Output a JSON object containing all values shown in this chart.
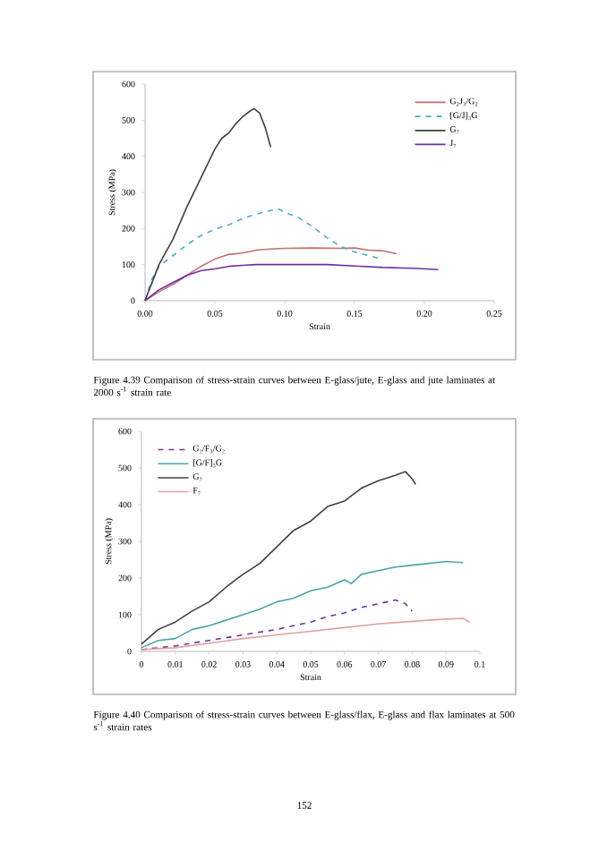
{
  "chart_data": [
    {
      "type": "line",
      "xlabel": "Strain",
      "ylabel": "Stress (MPa)",
      "xlim": [
        0,
        0.25
      ],
      "ylim": [
        0,
        600
      ],
      "xticks": [
        {
          "value": 0,
          "label": "0.00"
        },
        {
          "value": 0.05,
          "label": "0.05"
        },
        {
          "value": 0.1,
          "label": "0.10"
        },
        {
          "value": 0.15,
          "label": "0.15"
        },
        {
          "value": 0.2,
          "label": "0.20"
        },
        {
          "value": 0.25,
          "label": "0.25"
        }
      ],
      "yticks": [
        0,
        100,
        200,
        300,
        400,
        500,
        600
      ],
      "grid": false,
      "legend": "top right",
      "marker": "none",
      "series": [
        {
          "name": "G₂J₃/G₂",
          "color": "#c07070",
          "line_style": "solid",
          "x": [
            0,
            0.01,
            0.02,
            0.03,
            0.04,
            0.05,
            0.06,
            0.07,
            0.08,
            0.09,
            0.1,
            0.12,
            0.14,
            0.15,
            0.16,
            0.17,
            0.18
          ],
          "values": [
            0,
            25,
            45,
            70,
            95,
            115,
            128,
            132,
            140,
            143,
            145,
            146,
            145,
            146,
            140,
            138,
            130
          ]
        },
        {
          "name": "[G/J]₃G",
          "color": "#4bacc6",
          "line_style": "dashed",
          "x": [
            0,
            0.005,
            0.01,
            0.02,
            0.03,
            0.04,
            0.05,
            0.06,
            0.07,
            0.08,
            0.09,
            0.095,
            0.1,
            0.11,
            0.12,
            0.13,
            0.14,
            0.15,
            0.16,
            0.167
          ],
          "values": [
            0,
            60,
            95,
            125,
            155,
            180,
            198,
            210,
            228,
            240,
            250,
            255,
            245,
            230,
            205,
            175,
            150,
            135,
            125,
            118
          ]
        },
        {
          "name": "G₇",
          "color": "#404040",
          "line_style": "solid",
          "x": [
            0,
            0.01,
            0.02,
            0.03,
            0.04,
            0.05,
            0.055,
            0.06,
            0.065,
            0.07,
            0.075,
            0.078,
            0.082,
            0.086,
            0.09
          ],
          "values": [
            0,
            100,
            170,
            260,
            340,
            420,
            450,
            465,
            490,
            510,
            525,
            532,
            520,
            480,
            425
          ]
        },
        {
          "name": "J₇",
          "color": "#7030a0",
          "line_style": "solid",
          "x": [
            0,
            0.01,
            0.02,
            0.03,
            0.04,
            0.05,
            0.06,
            0.07,
            0.08,
            0.1,
            0.13,
            0.15,
            0.17,
            0.19,
            0.21
          ],
          "values": [
            0,
            30,
            50,
            70,
            83,
            88,
            95,
            98,
            100,
            100,
            100,
            96,
            92,
            90,
            86
          ]
        }
      ],
      "annotations": [
        "Figure 4.39     Comparison of stress-strain curves between E-glass/jute, E-glass and jute laminates at 2000 s$^{-1}$ strain rate"
      ]
    },
    {
      "type": "line",
      "xlabel": "Strain",
      "ylabel": "Stress (MPa)",
      "xlim": [
        0,
        0.1
      ],
      "ylim": [
        0,
        600
      ],
      "xticks": [
        0,
        0.01,
        0.02,
        0.03,
        0.04,
        0.05,
        0.06,
        0.07,
        0.08,
        0.09,
        0.1
      ],
      "yticks": [
        0,
        100,
        200,
        300,
        400,
        500,
        600
      ],
      "grid": false,
      "legend": "top left",
      "marker": "none",
      "series": [
        {
          "name": "G₂/F₃/G₂",
          "color": "#7030a0",
          "line_style": "dashed",
          "x": [
            0,
            0.01,
            0.02,
            0.03,
            0.04,
            0.05,
            0.055,
            0.06,
            0.065,
            0.07,
            0.075,
            0.078,
            0.08
          ],
          "values": [
            5,
            15,
            30,
            45,
            60,
            80,
            95,
            105,
            120,
            130,
            140,
            130,
            110
          ]
        },
        {
          "name": "[G/F]₃G",
          "color": "#4aa3a8",
          "line_style": "solid",
          "x": [
            0,
            0.005,
            0.01,
            0.015,
            0.02,
            0.025,
            0.03,
            0.035,
            0.04,
            0.045,
            0.05,
            0.055,
            0.06,
            0.062,
            0.065,
            0.07,
            0.075,
            0.08,
            0.085,
            0.09,
            0.095
          ],
          "values": [
            10,
            30,
            35,
            60,
            70,
            85,
            100,
            115,
            135,
            145,
            165,
            175,
            195,
            185,
            210,
            220,
            230,
            235,
            240,
            245,
            242
          ]
        },
        {
          "name": "G₇",
          "color": "#404040",
          "line_style": "solid",
          "x": [
            0,
            0.005,
            0.01,
            0.015,
            0.02,
            0.025,
            0.03,
            0.035,
            0.04,
            0.045,
            0.05,
            0.055,
            0.06,
            0.065,
            0.07,
            0.075,
            0.078,
            0.08,
            0.081
          ],
          "values": [
            20,
            60,
            80,
            110,
            135,
            175,
            210,
            240,
            285,
            330,
            355,
            395,
            410,
            445,
            465,
            480,
            490,
            470,
            455
          ]
        },
        {
          "name": "F₇",
          "color": "#e0a0a0",
          "line_style": "solid",
          "x": [
            0,
            0.01,
            0.02,
            0.03,
            0.04,
            0.05,
            0.06,
            0.07,
            0.08,
            0.09,
            0.095,
            0.097
          ],
          "values": [
            5,
            10,
            22,
            35,
            45,
            55,
            65,
            75,
            82,
            88,
            90,
            80
          ]
        }
      ],
      "annotations": [
        "Figure 4.40     Comparison of stress-strain curves between E-glass/flax, E-glass and flax laminates at 500 s$^{-1}$ strain rates",
        "152"
      ]
    }
  ]
}
